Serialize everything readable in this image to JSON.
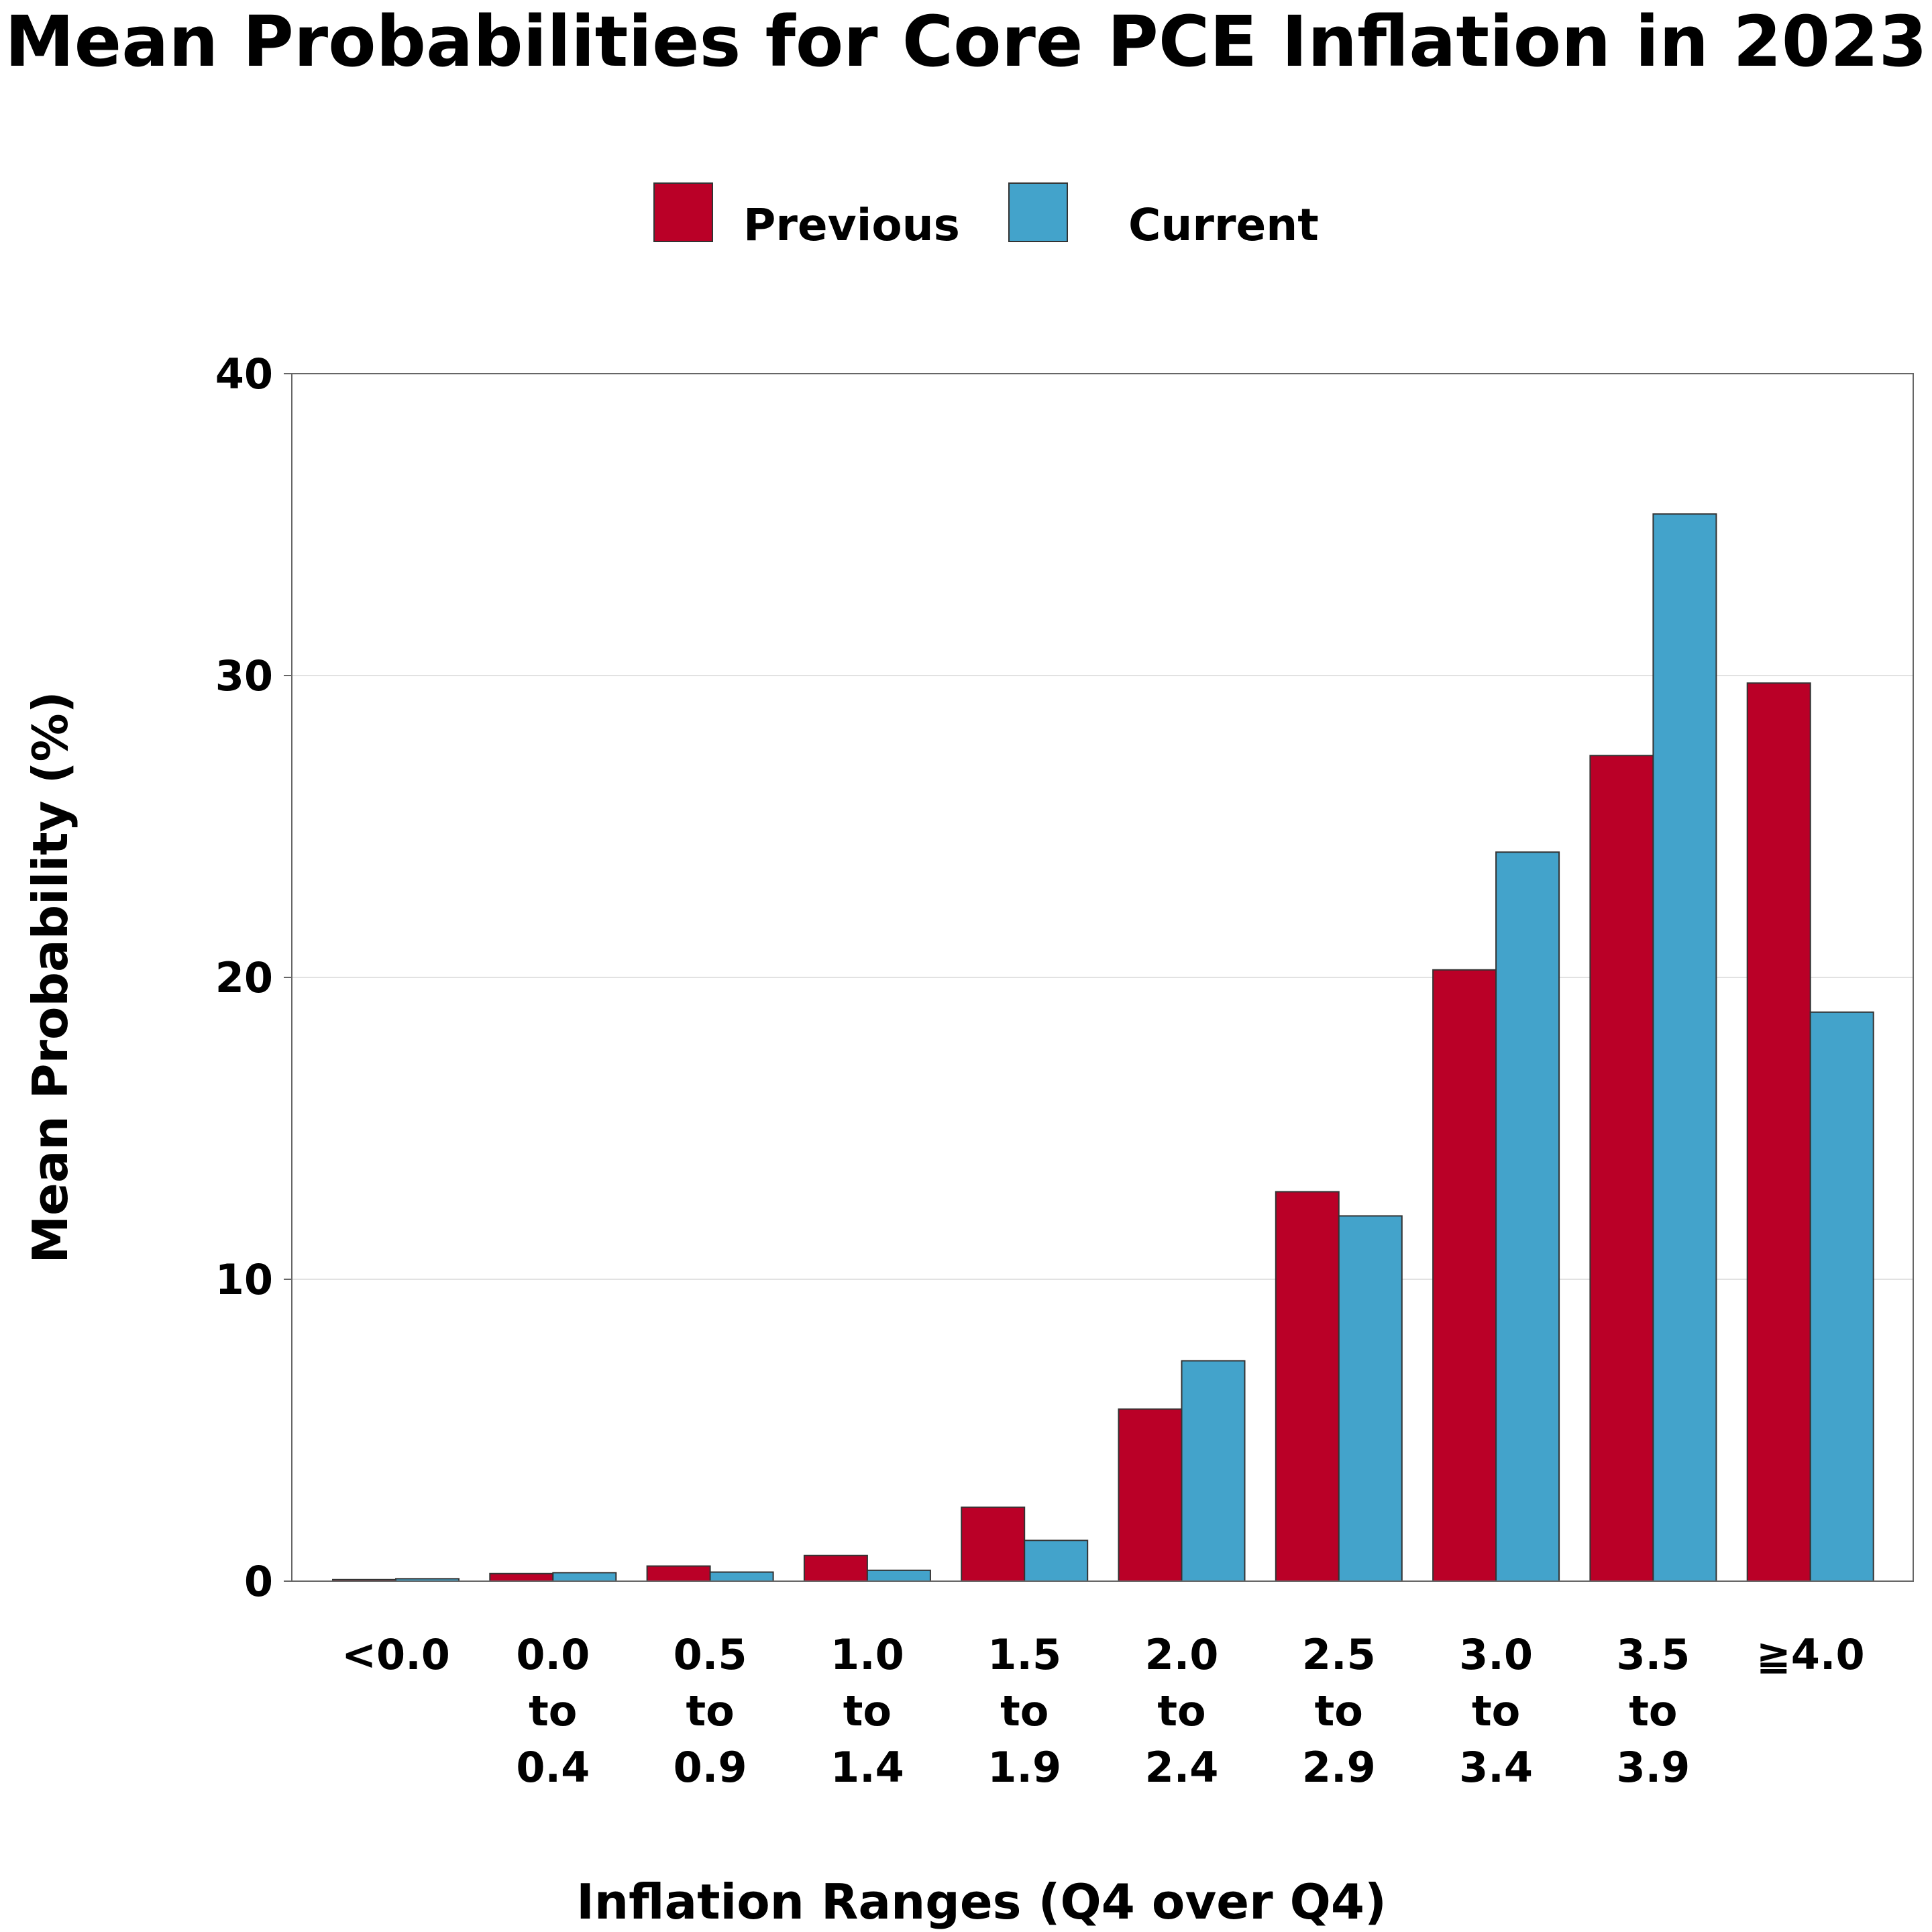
{
  "chart_data": {
    "type": "bar",
    "title": "Mean Probabilities for Core PCE Inflation in 2023",
    "xlabel": "Inflation Ranges (Q4 over Q4)",
    "ylabel": "Mean Probability (%)",
    "ylim": [
      0,
      40
    ],
    "yticks": [
      "0",
      "10",
      "20",
      "30",
      "40"
    ],
    "grid": "horizontal",
    "legend_position": "top-center",
    "categories": [
      [
        "<0.0"
      ],
      [
        "0.0",
        "to",
        "0.4"
      ],
      [
        "0.5",
        "to",
        "0.9"
      ],
      [
        "1.0",
        "to",
        "1.4"
      ],
      [
        "1.5",
        "to",
        "1.9"
      ],
      [
        "2.0",
        "to",
        "2.4"
      ],
      [
        "2.5",
        "to",
        "2.9"
      ],
      [
        "3.0",
        "to",
        "3.4"
      ],
      [
        "3.5",
        "to",
        "3.9"
      ],
      [
        "≧4.0"
      ]
    ],
    "series": [
      {
        "name": "Previous",
        "color": "#BA0027",
        "values": [
          0.05,
          0.25,
          0.5,
          0.85,
          2.45,
          5.7,
          12.9,
          20.25,
          27.35,
          29.75
        ]
      },
      {
        "name": "Current",
        "color": "#43A3CB",
        "values": [
          0.08,
          0.28,
          0.3,
          0.36,
          1.35,
          7.3,
          12.1,
          24.15,
          35.35,
          18.85
        ]
      }
    ]
  }
}
